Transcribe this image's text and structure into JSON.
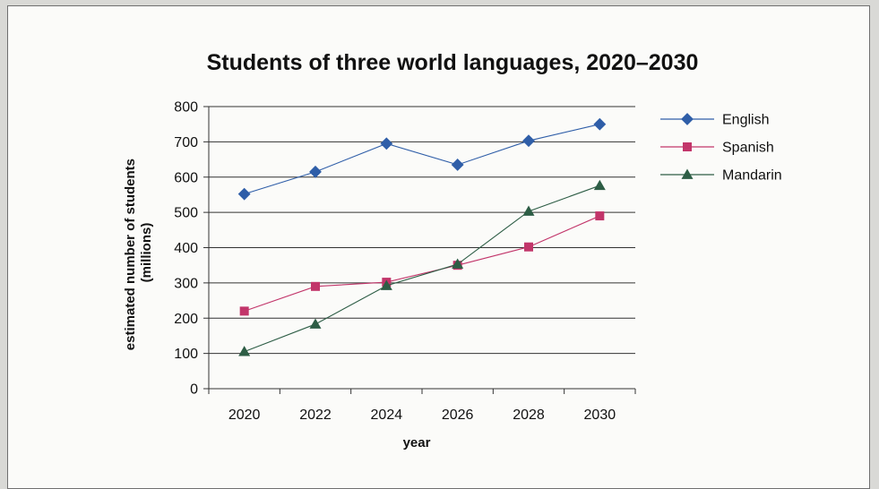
{
  "chart_data": {
    "type": "line",
    "title": "Students of three world languages, 2020–2030",
    "xlabel": "year",
    "ylabel": [
      "estimated number of students",
      "(millions)"
    ],
    "categories": [
      "2020",
      "2022",
      "2024",
      "2026",
      "2028",
      "2030"
    ],
    "ylim": [
      0,
      800
    ],
    "yticks": [
      0,
      100,
      200,
      300,
      400,
      500,
      600,
      700,
      800
    ],
    "grid": true,
    "legend_position": "top-right",
    "series": [
      {
        "name": "English",
        "values": [
          552,
          615,
          695,
          635,
          703,
          750
        ],
        "color": "#2f5ea8",
        "marker": "diamond"
      },
      {
        "name": "Spanish",
        "values": [
          220,
          290,
          302,
          350,
          402,
          490
        ],
        "color": "#c2356a",
        "marker": "square"
      },
      {
        "name": "Mandarin",
        "values": [
          105,
          183,
          292,
          353,
          503,
          576
        ],
        "color": "#2d5d45",
        "marker": "triangle"
      }
    ]
  }
}
